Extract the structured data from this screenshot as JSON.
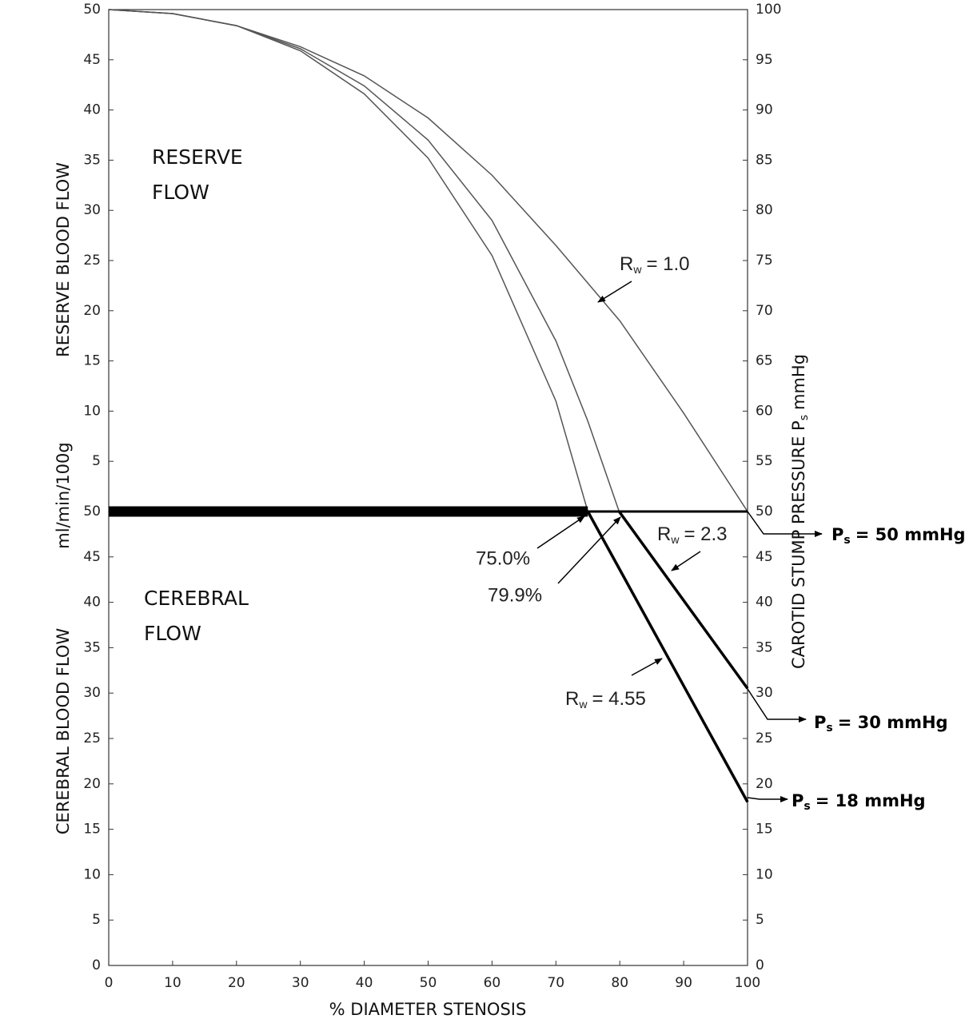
{
  "chart_data": [
    {
      "type": "line",
      "panel": "upper",
      "ylabel": "RESERVE BLOOD FLOW",
      "ylabel_units": "ml/min/100g",
      "region_label": [
        "RESERVE",
        "FLOW"
      ],
      "xlim": [
        0,
        100
      ],
      "ylim": [
        0,
        50
      ],
      "y2lim": [
        50,
        100
      ],
      "yticks": [
        5,
        10,
        15,
        20,
        25,
        30,
        35,
        40,
        45,
        50
      ],
      "y2ticks": [
        55,
        60,
        65,
        70,
        75,
        80,
        85,
        90,
        95,
        100
      ],
      "series": [
        {
          "color": "#555555",
          "linewidth": 1.5,
          "x": [
            0,
            10,
            20,
            30,
            40,
            50,
            60,
            70,
            80,
            90,
            100
          ],
          "values": [
            50,
            49.6,
            48.4,
            46.3,
            43.4,
            39.2,
            33.5,
            26.5,
            19.0,
            9.8,
            0
          ]
        },
        {
          "color": "#555555",
          "linewidth": 1.5,
          "x": [
            0,
            10,
            20,
            30,
            40,
            50,
            60,
            70,
            75,
            79.9
          ],
          "values": [
            50,
            49.6,
            48.4,
            46.1,
            42.4,
            37.0,
            29.0,
            17.0,
            9.0,
            0
          ]
        },
        {
          "color": "#555555",
          "linewidth": 1.5,
          "x": [
            0,
            10,
            20,
            30,
            40,
            50,
            60,
            70,
            75
          ],
          "values": [
            50,
            49.6,
            48.4,
            45.9,
            41.6,
            35.2,
            25.5,
            11.0,
            0
          ]
        }
      ],
      "annotations": {
        "rw1": {
          "base": "R",
          "sub": "w",
          "tail": "= 1.0"
        }
      }
    },
    {
      "type": "line",
      "panel": "lower",
      "ylabel": "CEREBRAL BLOOD FLOW",
      "xlabel": "% DIAMETER STENOSIS",
      "region_label": [
        "CEREBRAL",
        "FLOW"
      ],
      "y2label": {
        "base": "CAROTID STUMP PRESSURE P",
        "sub": "s",
        "tail": "mmHg"
      },
      "xlim": [
        0,
        100
      ],
      "ylim": [
        0,
        50
      ],
      "y2lim": [
        0,
        50
      ],
      "xticks": [
        0,
        10,
        20,
        30,
        40,
        50,
        60,
        70,
        80,
        90,
        100
      ],
      "yticks": [
        0,
        5,
        10,
        15,
        20,
        25,
        30,
        35,
        40,
        45,
        50
      ],
      "y2ticks": [
        0,
        5,
        10,
        15,
        20,
        25,
        30,
        35,
        40,
        45,
        50
      ],
      "series": [
        {
          "color": "#000000",
          "linewidth": 13,
          "x": [
            0,
            75
          ],
          "values": [
            50,
            50
          ]
        },
        {
          "color": "#000000",
          "linewidth": 3,
          "x": [
            75,
            100
          ],
          "values": [
            50,
            50
          ]
        },
        {
          "color": "#000000",
          "linewidth": 3.5,
          "x": [
            79.9,
            100
          ],
          "values": [
            50,
            30.5
          ]
        },
        {
          "color": "#000000",
          "linewidth": 3.5,
          "x": [
            75,
            100
          ],
          "values": [
            50,
            18
          ]
        }
      ],
      "annotations": {
        "rw23": {
          "base": "R",
          "sub": "w",
          "tail": "= 2.3"
        },
        "rw455": {
          "base": "R",
          "sub": "w",
          "tail": "= 4.55"
        },
        "pct75": "75.0%",
        "pct799": "79.9%",
        "ps50": {
          "base": "P",
          "sub": "s",
          "tail": "= 50 mmHg"
        },
        "ps30": {
          "base": "P",
          "sub": "s",
          "tail": "= 30 mmHg"
        },
        "ps18": {
          "base": "P",
          "sub": "s",
          "tail": "= 18 mmHg"
        }
      }
    }
  ]
}
